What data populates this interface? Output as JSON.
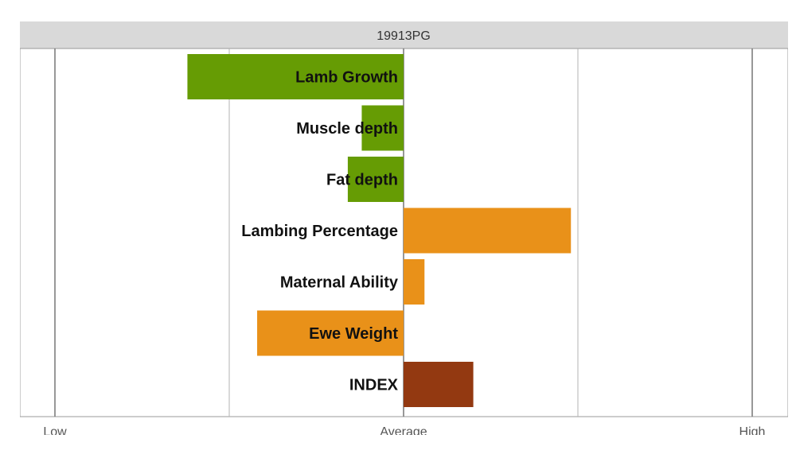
{
  "chart_data": {
    "type": "bar",
    "orientation": "horizontal",
    "title": "19913PG",
    "xlabel": "",
    "ylabel": "",
    "xlim": [
      -1,
      1
    ],
    "x_ticks": [
      {
        "value": -1,
        "label": "Low"
      },
      {
        "value": 0,
        "label": "Average"
      },
      {
        "value": 1,
        "label": "High"
      }
    ],
    "grid": true,
    "categories": [
      "Lamb Growth",
      "Muscle depth",
      "Fat depth",
      "Lambing Percentage",
      "Maternal Ability",
      "Ewe Weight",
      "INDEX"
    ],
    "values": [
      -0.62,
      -0.12,
      -0.16,
      0.48,
      0.06,
      -0.42,
      0.2
    ],
    "bar_colors": [
      "#669c04",
      "#669c04",
      "#669c04",
      "#e99119",
      "#e99119",
      "#e99119",
      "#933911"
    ],
    "colors": {
      "header_background": "#d9d9d9",
      "gridline": "#b3b3b3",
      "frame": "#999999"
    }
  }
}
